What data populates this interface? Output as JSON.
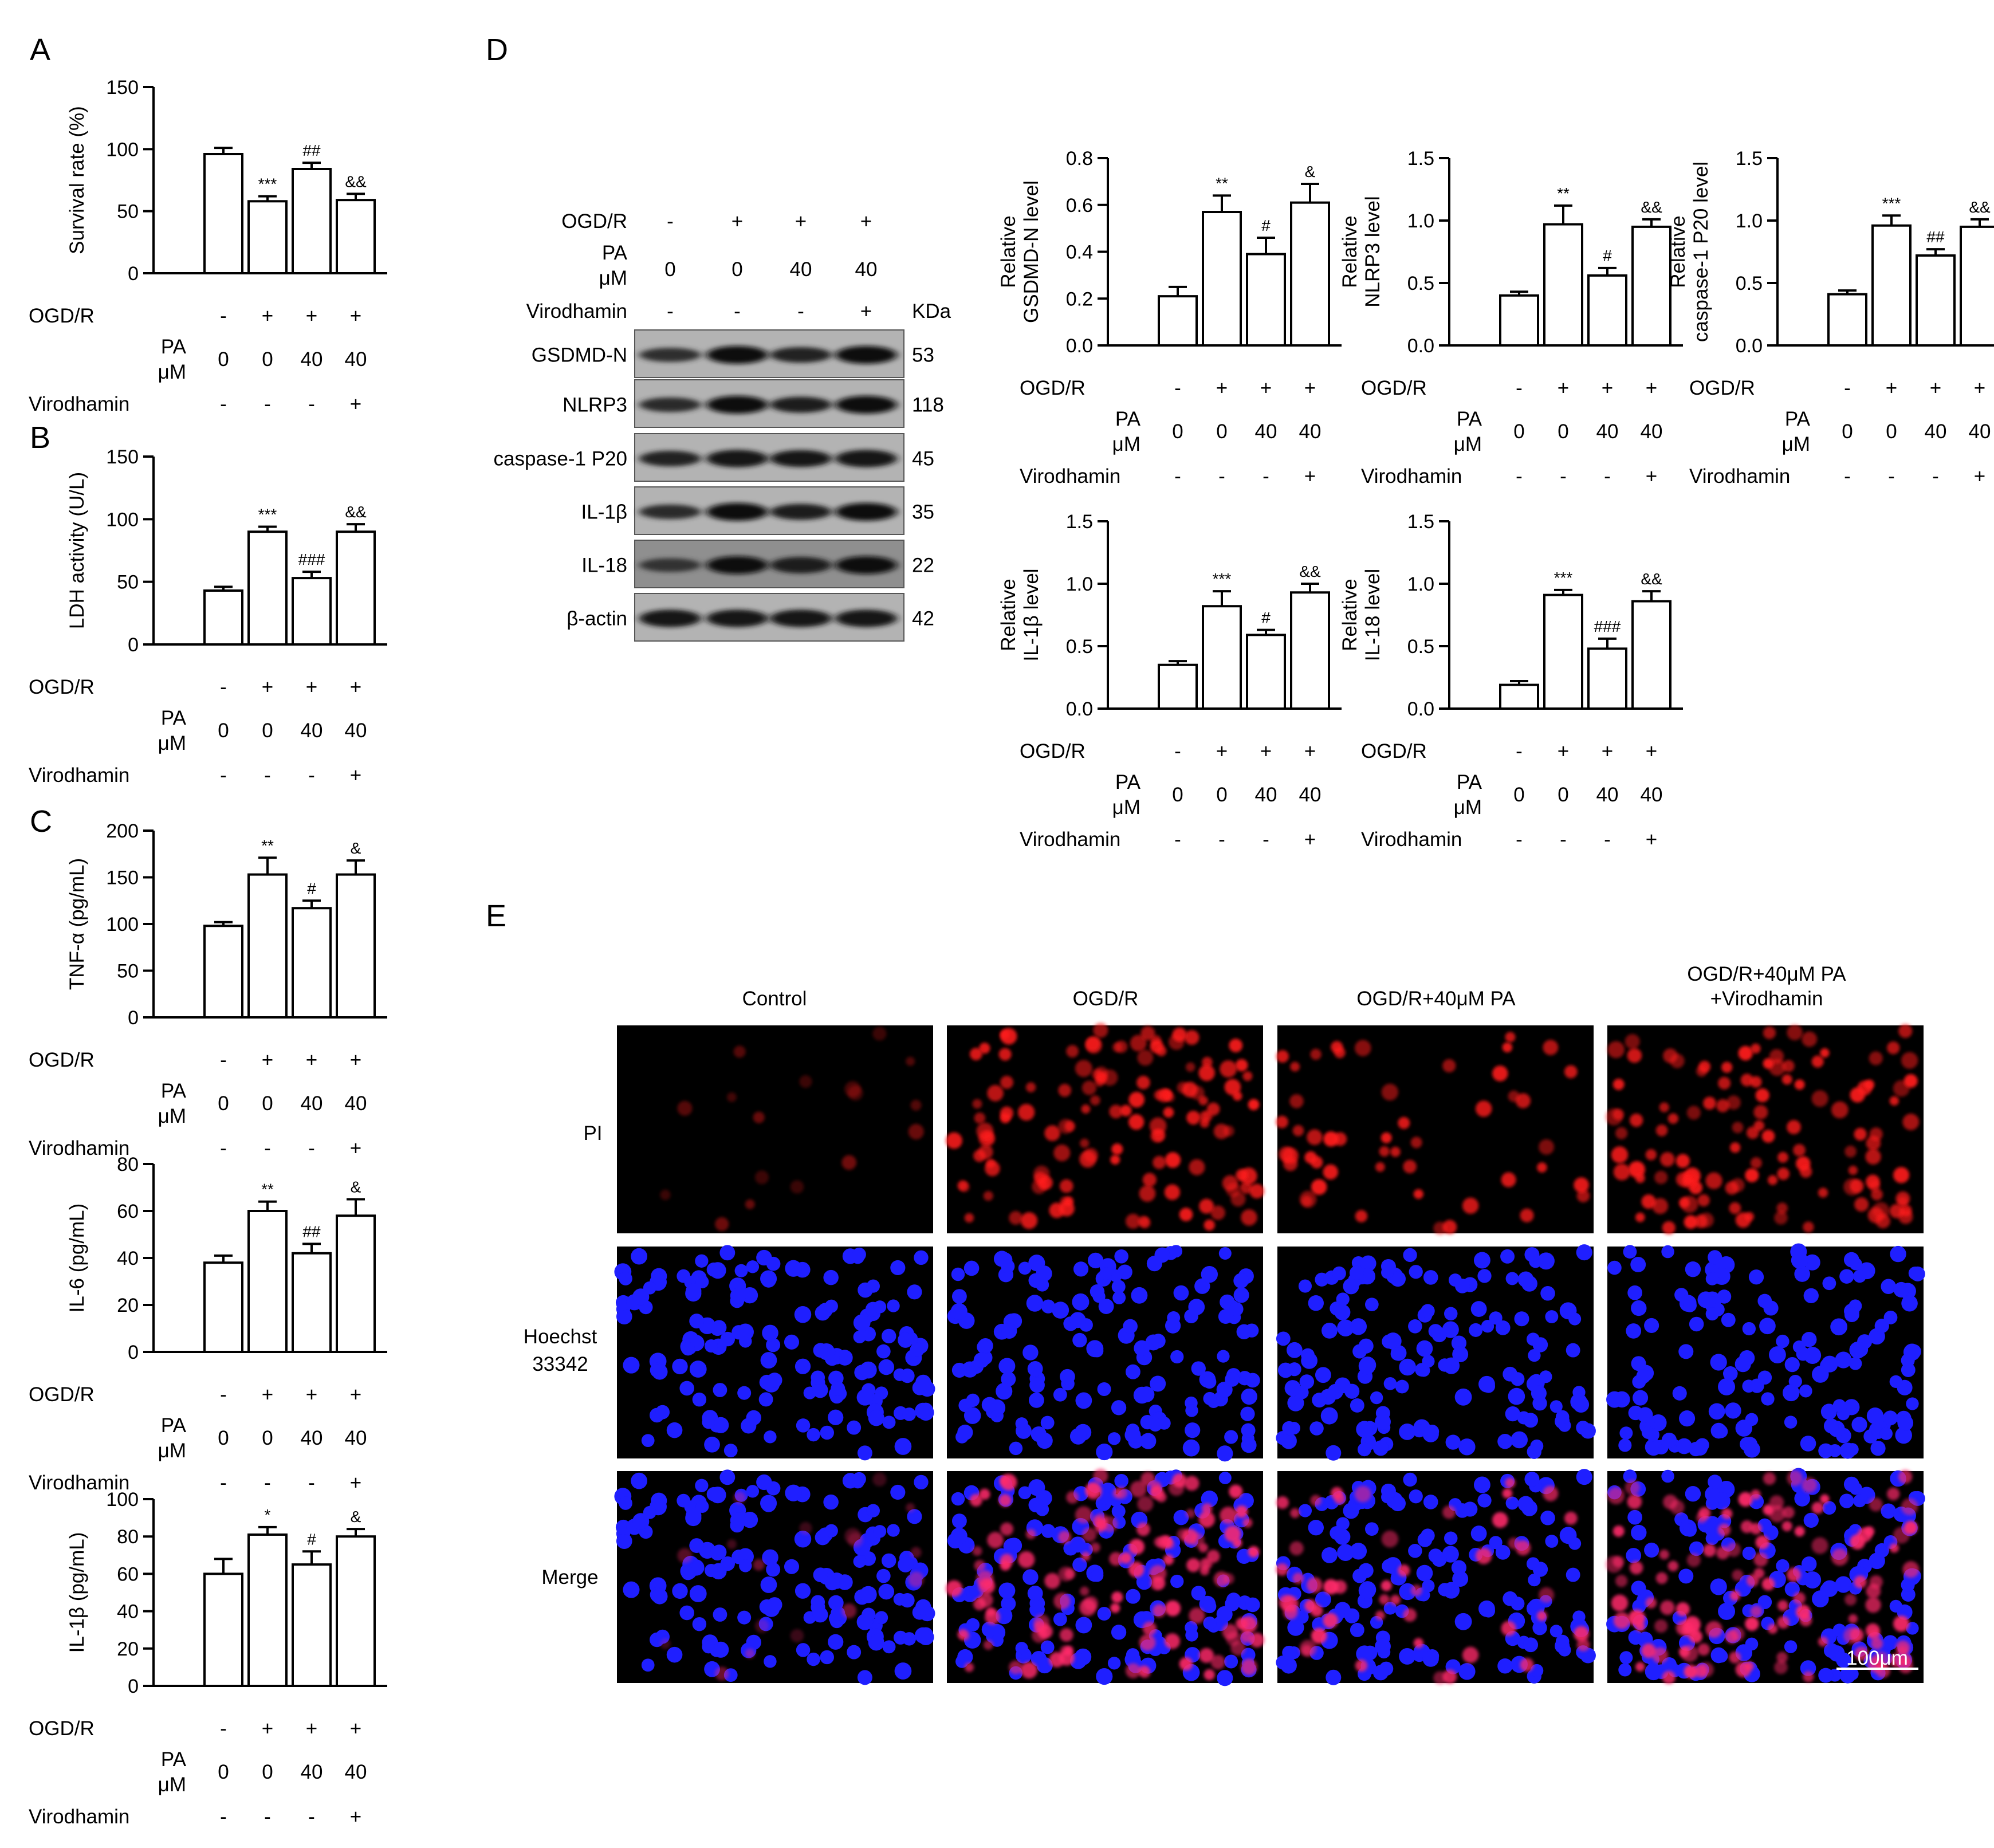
{
  "panel_letters": [
    "A",
    "B",
    "C",
    "D",
    "E"
  ],
  "treatment_rows": {
    "labels": [
      "OGD/R",
      "PA",
      "μM",
      "Virodhamin"
    ],
    "ogdr": [
      "-",
      "+",
      "+",
      "+"
    ],
    "pa": [
      "0",
      "0",
      "40",
      "40"
    ],
    "virodhamin": [
      "-",
      "-",
      "-",
      "+"
    ]
  },
  "chart_data": [
    {
      "id": "A",
      "type": "bar",
      "ylabel": "Survival rate (%)",
      "ylim": [
        0,
        150
      ],
      "yticks": [
        0,
        50,
        100,
        150
      ],
      "values": [
        96,
        58,
        84,
        59
      ],
      "errors": [
        5,
        4,
        5,
        5
      ],
      "significance": [
        "",
        "***",
        "##",
        "&&"
      ]
    },
    {
      "id": "B",
      "type": "bar",
      "ylabel": "LDH activity (U/L)",
      "ylim": [
        0,
        150
      ],
      "yticks": [
        0,
        50,
        100,
        150
      ],
      "values": [
        43,
        90,
        53,
        90
      ],
      "errors": [
        3,
        4,
        5,
        6
      ],
      "significance": [
        "",
        "***",
        "###",
        "&&"
      ]
    },
    {
      "id": "C1",
      "type": "bar",
      "ylabel": "TNF-α (pg/mL)",
      "ylim": [
        0,
        200
      ],
      "yticks": [
        0,
        50,
        100,
        150,
        200
      ],
      "values": [
        98,
        153,
        117,
        153
      ],
      "errors": [
        4,
        18,
        8,
        15
      ],
      "significance": [
        "",
        "**",
        "#",
        "&"
      ]
    },
    {
      "id": "C2",
      "type": "bar",
      "ylabel": "IL-6 (pg/mL)",
      "ylim": [
        0,
        80
      ],
      "yticks": [
        0,
        20,
        40,
        60,
        80
      ],
      "values": [
        38,
        60,
        42,
        58
      ],
      "errors": [
        3,
        4,
        4,
        7
      ],
      "significance": [
        "",
        "**",
        "##",
        "&"
      ]
    },
    {
      "id": "C3",
      "type": "bar",
      "ylabel": "IL-1β (pg/mL)",
      "ylim": [
        0,
        100
      ],
      "yticks": [
        0,
        20,
        40,
        60,
        80,
        100
      ],
      "values": [
        60,
        81,
        65,
        80
      ],
      "errors": [
        8,
        4,
        7,
        4
      ],
      "significance": [
        "",
        "*",
        "#",
        "&"
      ]
    },
    {
      "id": "D1",
      "type": "bar",
      "ylabel": [
        "Relative",
        "GSDMD-N level"
      ],
      "ylim": [
        0,
        0.8
      ],
      "yticks": [
        "0.0",
        "0.2",
        "0.4",
        "0.6",
        "0.8"
      ],
      "values": [
        0.21,
        0.57,
        0.39,
        0.61
      ],
      "errors": [
        0.04,
        0.07,
        0.07,
        0.08
      ],
      "significance": [
        "",
        "**",
        "#",
        "&"
      ]
    },
    {
      "id": "D2",
      "type": "bar",
      "ylabel": [
        "Relative",
        "NLRP3 level"
      ],
      "ylim": [
        0,
        1.5
      ],
      "yticks": [
        "0.0",
        "0.5",
        "1.0",
        "1.5"
      ],
      "values": [
        0.4,
        0.97,
        0.56,
        0.95
      ],
      "errors": [
        0.03,
        0.15,
        0.06,
        0.06
      ],
      "significance": [
        "",
        "**",
        "#",
        "&&"
      ]
    },
    {
      "id": "D3",
      "type": "bar",
      "ylabel": [
        "Relative",
        "caspase-1 P20 level"
      ],
      "ylim": [
        0,
        1.5
      ],
      "yticks": [
        "0.0",
        "0.5",
        "1.0",
        "1.5"
      ],
      "values": [
        0.41,
        0.96,
        0.72,
        0.95
      ],
      "errors": [
        0.03,
        0.08,
        0.05,
        0.06
      ],
      "significance": [
        "",
        "***",
        "##",
        "&&"
      ]
    },
    {
      "id": "D4",
      "type": "bar",
      "ylabel": [
        "Relative",
        "IL-1β level"
      ],
      "ylim": [
        0,
        1.5
      ],
      "yticks": [
        "0.0",
        "0.5",
        "1.0",
        "1.5"
      ],
      "values": [
        0.35,
        0.82,
        0.59,
        0.93
      ],
      "errors": [
        0.03,
        0.12,
        0.04,
        0.07
      ],
      "significance": [
        "",
        "***",
        "#",
        "&&"
      ]
    },
    {
      "id": "D5",
      "type": "bar",
      "ylabel": [
        "Relative",
        "IL-18 level"
      ],
      "ylim": [
        0,
        1.5
      ],
      "yticks": [
        "0.0",
        "0.5",
        "1.0",
        "1.5"
      ],
      "values": [
        0.19,
        0.91,
        0.48,
        0.86
      ],
      "errors": [
        0.03,
        0.04,
        0.08,
        0.08
      ],
      "significance": [
        "",
        "***",
        "###",
        "&&"
      ]
    }
  ],
  "western_blot": {
    "ogdr_label": "OGD/R",
    "ogdr": [
      "-",
      "+",
      "+",
      "+"
    ],
    "pa_label": [
      "PA",
      "μM"
    ],
    "pa": [
      "0",
      "0",
      "40",
      "40"
    ],
    "virodhamin_label": "Virodhamin",
    "virodhamin": [
      "-",
      "-",
      "-",
      "+"
    ],
    "kda_label": "KDa",
    "bands": [
      {
        "name": "GSDMD-N",
        "kda": "53",
        "intensity": [
          0.55,
          0.95,
          0.7,
          0.95
        ]
      },
      {
        "name": "NLRP3",
        "kda": "118",
        "intensity": [
          0.6,
          0.95,
          0.75,
          0.95
        ]
      },
      {
        "name": "caspase-1 P20",
        "kda": "45",
        "intensity": [
          0.7,
          0.9,
          0.85,
          0.9
        ]
      },
      {
        "name": "IL-1β",
        "kda": "35",
        "intensity": [
          0.6,
          0.95,
          0.75,
          0.95
        ]
      },
      {
        "name": "IL-18",
        "kda": "22",
        "intensity": [
          0.5,
          0.95,
          0.8,
          0.95
        ]
      },
      {
        "name": "β-actin",
        "kda": "42",
        "intensity": [
          0.9,
          0.9,
          0.9,
          0.9
        ]
      }
    ]
  },
  "fluorescence": {
    "columns": [
      "Control",
      "OGD/R",
      "OGD/R+40μM PA",
      [
        "OGD/R+40μM PA",
        "+Virodhamin"
      ]
    ],
    "rows": [
      "PI",
      [
        "Hoechst",
        "33342"
      ],
      "Merge"
    ],
    "pi_density": [
      0.12,
      0.9,
      0.35,
      0.85
    ],
    "scale_bar": "100μm"
  }
}
